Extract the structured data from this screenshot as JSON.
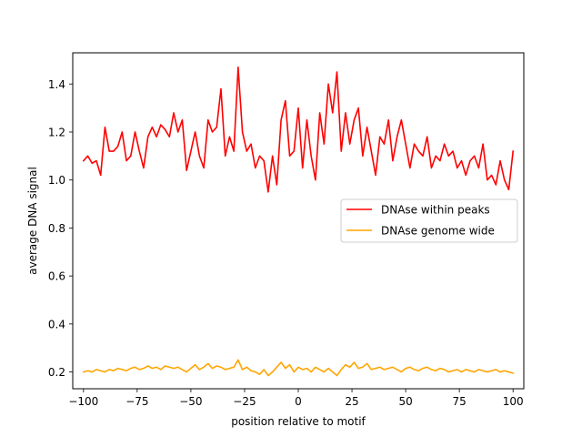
{
  "chart_data": {
    "type": "line",
    "title": "",
    "xlabel": "position relative to motif",
    "ylabel": "average DNA signal",
    "xlim": [
      -105,
      105
    ],
    "ylim": [
      0.13,
      1.53
    ],
    "xticks": [
      -100,
      -75,
      -50,
      -25,
      0,
      25,
      50,
      75,
      100
    ],
    "yticks": [
      0.2,
      0.4,
      0.6,
      0.8,
      1.0,
      1.2,
      1.4
    ],
    "xtick_labels": [
      "−100",
      "−75",
      "−50",
      "−25",
      "0",
      "25",
      "50",
      "75",
      "100"
    ],
    "ytick_labels": [
      "0.2",
      "0.4",
      "0.6",
      "0.8",
      "1.0",
      "1.2",
      "1.4"
    ],
    "grid": false,
    "legend_position": "center-right",
    "series": [
      {
        "name": "DNAse within peaks",
        "color": "#ff0000",
        "x": [
          -100,
          -98,
          -96,
          -94,
          -92,
          -90,
          -88,
          -86,
          -84,
          -82,
          -80,
          -78,
          -76,
          -74,
          -72,
          -70,
          -68,
          -66,
          -64,
          -62,
          -60,
          -58,
          -56,
          -54,
          -52,
          -50,
          -48,
          -46,
          -44,
          -42,
          -40,
          -38,
          -36,
          -34,
          -32,
          -30,
          -28,
          -26,
          -24,
          -22,
          -20,
          -18,
          -16,
          -14,
          -12,
          -10,
          -8,
          -6,
          -4,
          -2,
          0,
          2,
          4,
          6,
          8,
          10,
          12,
          14,
          16,
          18,
          20,
          22,
          24,
          26,
          28,
          30,
          32,
          34,
          36,
          38,
          40,
          42,
          44,
          46,
          48,
          50,
          52,
          54,
          56,
          58,
          60,
          62,
          64,
          66,
          68,
          70,
          72,
          74,
          76,
          78,
          80,
          82,
          84,
          86,
          88,
          90,
          92,
          94,
          96,
          98,
          100
        ],
        "values": [
          1.08,
          1.1,
          1.07,
          1.08,
          1.02,
          1.22,
          1.12,
          1.12,
          1.14,
          1.2,
          1.08,
          1.1,
          1.2,
          1.12,
          1.05,
          1.18,
          1.22,
          1.18,
          1.23,
          1.21,
          1.18,
          1.28,
          1.2,
          1.25,
          1.04,
          1.12,
          1.2,
          1.1,
          1.05,
          1.25,
          1.2,
          1.22,
          1.38,
          1.1,
          1.18,
          1.12,
          1.47,
          1.2,
          1.12,
          1.15,
          1.05,
          1.1,
          1.08,
          0.95,
          1.1,
          0.98,
          1.25,
          1.33,
          1.1,
          1.12,
          1.3,
          1.05,
          1.25,
          1.1,
          1.0,
          1.28,
          1.15,
          1.4,
          1.28,
          1.45,
          1.12,
          1.28,
          1.15,
          1.25,
          1.3,
          1.1,
          1.22,
          1.12,
          1.02,
          1.18,
          1.15,
          1.25,
          1.08,
          1.18,
          1.25,
          1.15,
          1.05,
          1.15,
          1.12,
          1.1,
          1.18,
          1.05,
          1.1,
          1.08,
          1.15,
          1.1,
          1.12,
          1.05,
          1.08,
          1.02,
          1.08,
          1.1,
          1.05,
          1.15,
          1.0,
          1.02,
          0.98,
          1.08,
          1.0,
          0.96,
          1.12
        ]
      },
      {
        "name": "DNAse genome wide",
        "color": "#ffa500",
        "x": [
          -100,
          -98,
          -96,
          -94,
          -92,
          -90,
          -88,
          -86,
          -84,
          -82,
          -80,
          -78,
          -76,
          -74,
          -72,
          -70,
          -68,
          -66,
          -64,
          -62,
          -60,
          -58,
          -56,
          -54,
          -52,
          -50,
          -48,
          -46,
          -44,
          -42,
          -40,
          -38,
          -36,
          -34,
          -32,
          -30,
          -28,
          -26,
          -24,
          -22,
          -20,
          -18,
          -16,
          -14,
          -12,
          -10,
          -8,
          -6,
          -4,
          -2,
          0,
          2,
          4,
          6,
          8,
          10,
          12,
          14,
          16,
          18,
          20,
          22,
          24,
          26,
          28,
          30,
          32,
          34,
          36,
          38,
          40,
          42,
          44,
          46,
          48,
          50,
          52,
          54,
          56,
          58,
          60,
          62,
          64,
          66,
          68,
          70,
          72,
          74,
          76,
          78,
          80,
          82,
          84,
          86,
          88,
          90,
          92,
          94,
          96,
          98,
          100
        ],
        "values": [
          0.2,
          0.205,
          0.2,
          0.21,
          0.205,
          0.2,
          0.21,
          0.205,
          0.215,
          0.21,
          0.205,
          0.215,
          0.22,
          0.21,
          0.215,
          0.225,
          0.215,
          0.22,
          0.21,
          0.225,
          0.22,
          0.215,
          0.22,
          0.21,
          0.2,
          0.215,
          0.23,
          0.21,
          0.22,
          0.235,
          0.215,
          0.225,
          0.22,
          0.21,
          0.215,
          0.22,
          0.25,
          0.21,
          0.22,
          0.205,
          0.2,
          0.19,
          0.21,
          0.185,
          0.2,
          0.22,
          0.24,
          0.215,
          0.23,
          0.2,
          0.22,
          0.21,
          0.215,
          0.2,
          0.22,
          0.21,
          0.2,
          0.215,
          0.2,
          0.185,
          0.21,
          0.23,
          0.22,
          0.24,
          0.215,
          0.22,
          0.235,
          0.21,
          0.215,
          0.22,
          0.21,
          0.215,
          0.22,
          0.21,
          0.2,
          0.215,
          0.22,
          0.21,
          0.205,
          0.215,
          0.22,
          0.21,
          0.205,
          0.215,
          0.21,
          0.2,
          0.205,
          0.21,
          0.2,
          0.21,
          0.205,
          0.2,
          0.21,
          0.205,
          0.2,
          0.205,
          0.21,
          0.2,
          0.205,
          0.2,
          0.195
        ]
      }
    ]
  }
}
